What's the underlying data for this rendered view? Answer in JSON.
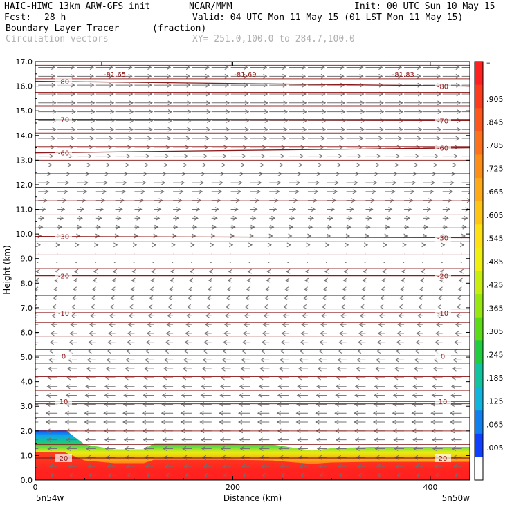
{
  "header": {
    "model": "HAIC-HIWC 13km ARW-GFS init",
    "org": "NCAR/MMM",
    "init": "Init: 00 UTC Sun 10 May 15",
    "fcst_label": "Fcst:",
    "fcst_value": "28 h",
    "valid": "Valid: 04 UTC Mon 11 May 15 (01 LST Mon 11 May 15)",
    "field": "Boundary Layer Tracer",
    "field_units": "(fraction)",
    "vectors": "Circulation vectors",
    "xy": "XY= 251.0,100.0 to 284.7,100.0"
  },
  "chart_data": {
    "type": "heatmap",
    "xlabel": "Distance (km)",
    "ylabel": "Height (km)",
    "xlim": [
      0,
      440
    ],
    "ylim": [
      0,
      17
    ],
    "x_ticks": [
      "0",
      "200",
      "400"
    ],
    "y_ticks": [
      "0.0",
      "1.0",
      "2.0",
      "3.0",
      "4.0",
      "5.0",
      "6.0",
      "7.0",
      "8.0",
      "9.0",
      "10.0",
      "11.0",
      "12.0",
      "13.0",
      "14.0",
      "15.0",
      "16.0",
      "17.0"
    ],
    "x_end_labels": {
      "left": "5n54w",
      "right": "5n50w"
    },
    "colorbar": {
      "labels": [
        "–",
        ".905",
        ".845",
        ".785",
        ".725",
        ".665",
        ".605",
        ".545",
        ".485",
        ".425",
        ".365",
        ".305",
        ".245",
        ".185",
        ".125",
        ".065",
        ".005"
      ],
      "colors": [
        "#ff2020",
        "#ff3b1e",
        "#ff561c",
        "#ff721a",
        "#ff8e18",
        "#ffaa16",
        "#ffc514",
        "#ffe012",
        "#f0f010",
        "#c8ee10",
        "#96e810",
        "#5cdc18",
        "#20cc40",
        "#10c4a0",
        "#10b4dc",
        "#1080f0",
        "#1040ff",
        "#ffffff"
      ]
    },
    "tracer_top_km": [
      [
        0,
        2.05
      ],
      [
        30,
        2.05
      ],
      [
        50,
        1.45
      ],
      [
        80,
        1.25
      ],
      [
        110,
        1.25
      ],
      [
        120,
        1.5
      ],
      [
        200,
        1.5
      ],
      [
        240,
        1.45
      ],
      [
        280,
        1.2
      ],
      [
        300,
        1.3
      ],
      [
        340,
        1.35
      ],
      [
        440,
        1.35
      ]
    ],
    "temperature_contours": [
      {
        "label": "-80",
        "y_left": 16.2,
        "y_right": 16.0
      },
      {
        "label": "-70",
        "y_left": 14.65,
        "y_right": 14.6
      },
      {
        "label": "-60",
        "y_left": 13.3,
        "y_right": 13.5
      },
      {
        "label": "-30",
        "y_left": 9.9,
        "y_right": 9.85
      },
      {
        "label": "-20",
        "y_left": 8.3,
        "y_right": 8.3
      },
      {
        "label": "-10",
        "y_left": 6.8,
        "y_right": 6.8
      },
      {
        "label": "0",
        "y_left": 5.05,
        "y_right": 5.05
      },
      {
        "label": "10",
        "y_left": 3.2,
        "y_right": 3.2
      },
      {
        "label": "20",
        "y_left": 0.9,
        "y_right": 0.9
      }
    ],
    "minima": [
      {
        "label": "-81.65",
        "x": 68
      },
      {
        "label": "-81.69",
        "x": 200
      },
      {
        "label": "-81.83",
        "x": 360
      }
    ],
    "minima_marker": "L",
    "wind_profile": [
      {
        "z": 16.5,
        "u": 1.0
      },
      {
        "z": 14.5,
        "u": 1.1
      },
      {
        "z": 13.0,
        "u": 0.85
      },
      {
        "z": 11.5,
        "u": 0.55
      },
      {
        "z": 10.5,
        "u": 0.3
      },
      {
        "z": 9.5,
        "u": 0.1
      },
      {
        "z": 9.0,
        "u": -0.05
      },
      {
        "z": 7.5,
        "u": -0.25
      },
      {
        "z": 5.5,
        "u": -0.45
      },
      {
        "z": 4.0,
        "u": -0.6
      },
      {
        "z": 2.5,
        "u": -0.7
      },
      {
        "z": 1.0,
        "u": -0.55
      },
      {
        "z": 0.0,
        "u": -0.4
      }
    ]
  }
}
